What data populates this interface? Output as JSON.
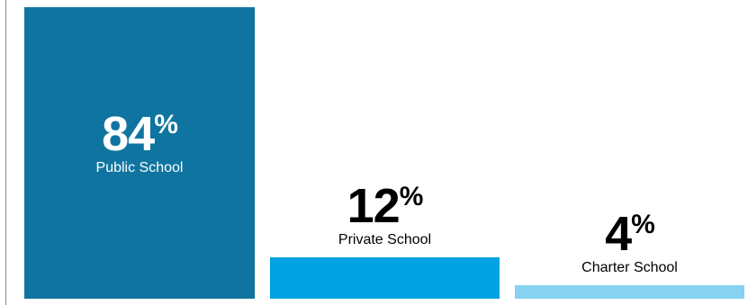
{
  "chart_data": {
    "type": "bar",
    "categories": [
      "Public School",
      "Private School",
      "Charter School"
    ],
    "values": [
      84,
      12,
      4
    ],
    "value_suffix": "%",
    "title": "",
    "xlabel": "",
    "ylabel": "",
    "ylim": [
      0,
      84
    ],
    "colors": [
      "#0F75A0",
      "#00A2E1",
      "#86D2F0"
    ],
    "grid": false,
    "legend": "none",
    "label_text_colors": [
      "#ffffff",
      "#000000",
      "#000000"
    ]
  }
}
